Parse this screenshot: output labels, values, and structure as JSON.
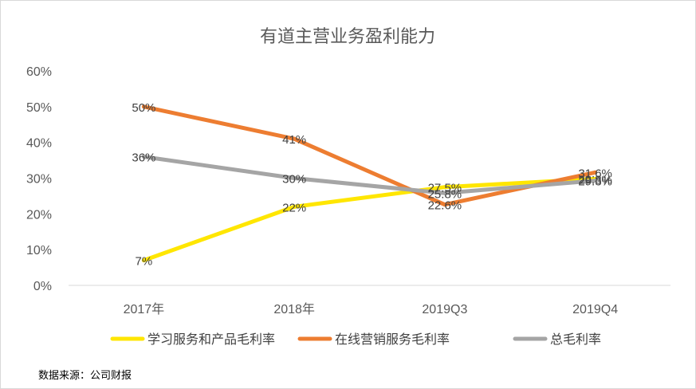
{
  "chart_data": {
    "type": "line",
    "title": "有道主营业务盈利能力",
    "categories": [
      "2017年",
      "2018年",
      "2019Q3",
      "2019Q4"
    ],
    "y_ticks": [
      "0%",
      "10%",
      "20%",
      "30%",
      "40%",
      "50%",
      "60%"
    ],
    "ylim": [
      0,
      60
    ],
    "grid": false,
    "legend_position": "bottom",
    "series": [
      {
        "name": "学习服务和产品毛利率",
        "color": "#FFE600",
        "values": [
          7,
          22,
          27.5,
          29.8
        ],
        "labels": [
          "7%",
          "22%",
          "27.5%",
          "29.8%"
        ]
      },
      {
        "name": "在线营销服务毛利率",
        "color": "#ED7D31",
        "values": [
          50,
          41,
          22.6,
          31.6
        ],
        "labels": [
          "50%",
          "41%",
          "22.6%",
          "31.6%"
        ]
      },
      {
        "name": "总毛利率",
        "color": "#A5A5A5",
        "values": [
          36,
          30,
          25.8,
          29.3
        ],
        "labels": [
          "36%",
          "30%",
          "25.8%",
          "29.3%"
        ]
      }
    ]
  },
  "source_note": "数据来源：公司财报"
}
